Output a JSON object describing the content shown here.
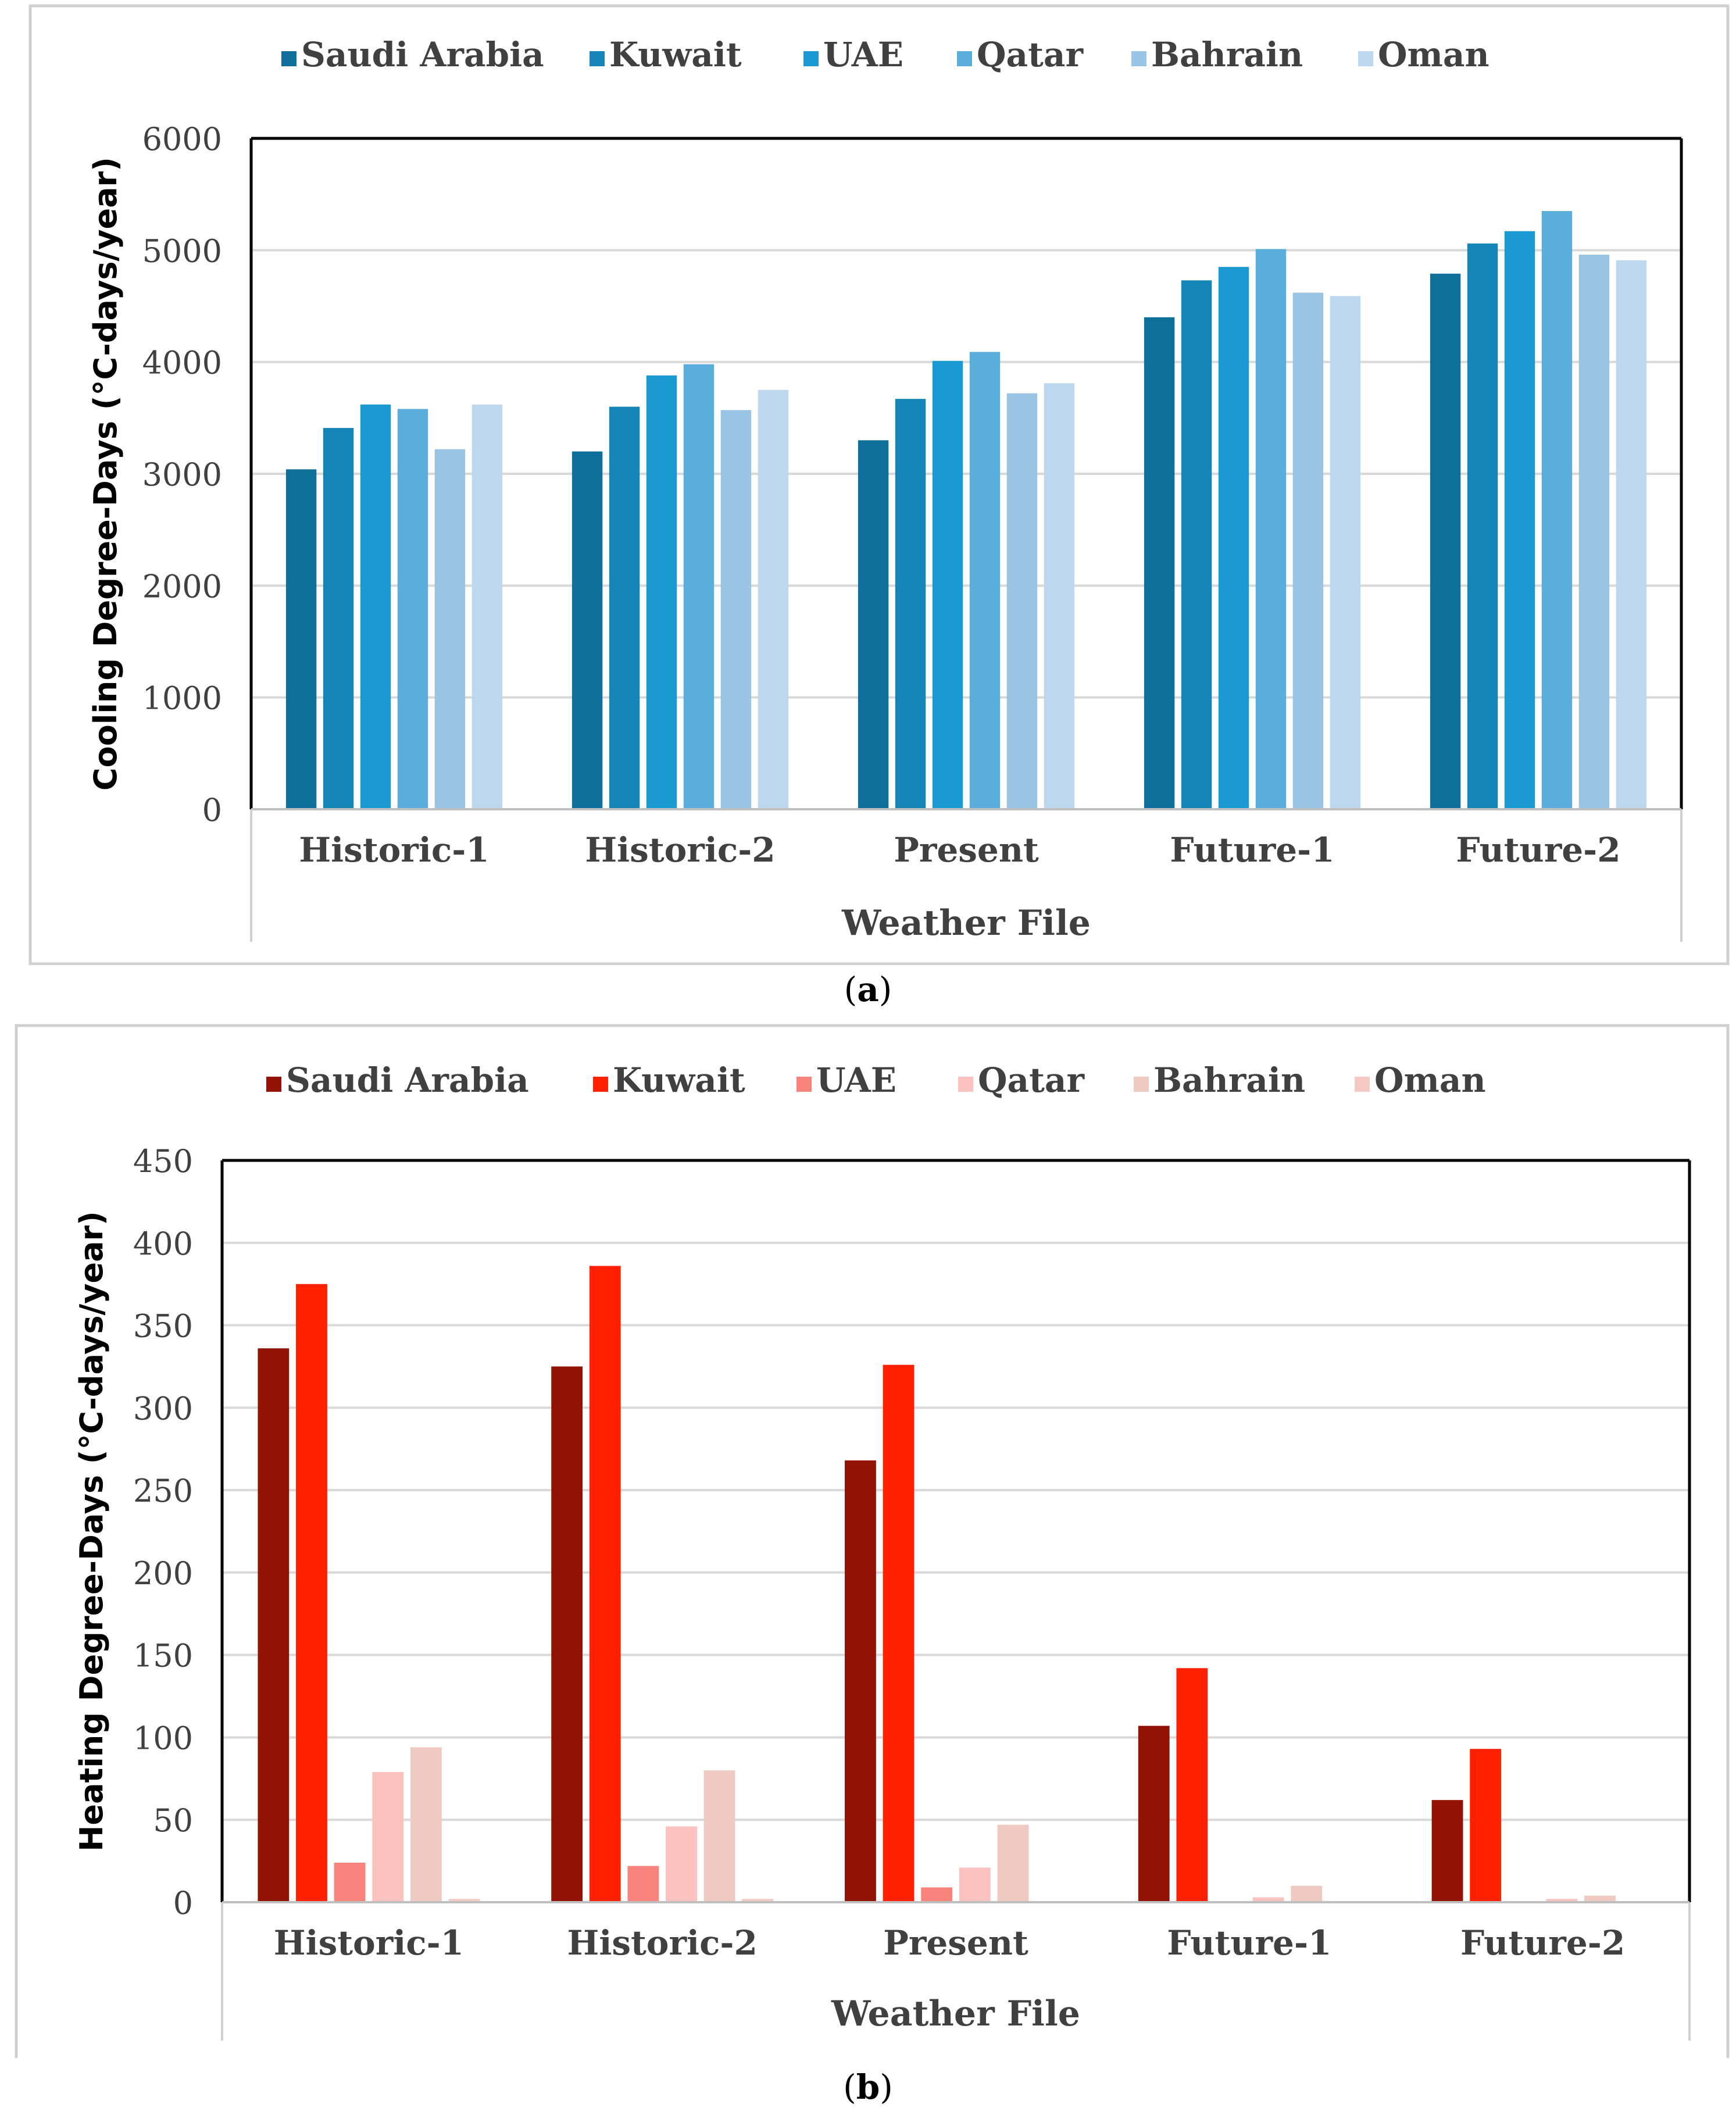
{
  "chart_data": [
    {
      "type": "bar",
      "title": "",
      "xlabel": "Weather File",
      "ylabel": "Cooling Degree-Days (°C-days/year)",
      "ylim": [
        0,
        6000
      ],
      "yticks": [
        0,
        1000,
        2000,
        3000,
        4000,
        5000,
        6000
      ],
      "grid": true,
      "legend_position": "top",
      "categories": [
        "Historic-1",
        "Historic-2",
        "Present",
        "Future-1",
        "Future-2"
      ],
      "series": [
        {
          "name": "Saudi Arabia",
          "color": "#0e6f9a",
          "values": [
            3040,
            3200,
            3300,
            4400,
            4790
          ]
        },
        {
          "name": "Kuwait",
          "color": "#1585b8",
          "values": [
            3410,
            3600,
            3670,
            4730,
            5060
          ]
        },
        {
          "name": "UAE",
          "color": "#1a9ad0",
          "values": [
            3620,
            3880,
            4010,
            4850,
            5170
          ]
        },
        {
          "name": "Qatar",
          "color": "#5aaedb",
          "values": [
            3580,
            3980,
            4090,
            5010,
            5350
          ]
        },
        {
          "name": "Bahrain",
          "color": "#9ac4e3",
          "values": [
            3220,
            3570,
            3720,
            4620,
            4960
          ]
        },
        {
          "name": "Oman",
          "color": "#bdd8ee",
          "values": [
            3620,
            3750,
            3810,
            4590,
            4910
          ]
        }
      ]
    },
    {
      "type": "bar",
      "title": "",
      "xlabel": "Weather File",
      "ylabel": "Heating Degree-Days (°C-days/year)",
      "ylim": [
        0,
        450
      ],
      "yticks": [
        0,
        50,
        100,
        150,
        200,
        250,
        300,
        350,
        400,
        450
      ],
      "grid": true,
      "legend_position": "top",
      "categories": [
        "Historic-1",
        "Historic-2",
        "Present",
        "Future-1",
        "Future-2"
      ],
      "series": [
        {
          "name": "Saudi Arabia",
          "color": "#931206",
          "values": [
            336,
            325,
            268,
            107,
            62
          ]
        },
        {
          "name": "Kuwait",
          "color": "#ff2000",
          "values": [
            375,
            386,
            326,
            142,
            93
          ]
        },
        {
          "name": "UAE",
          "color": "#f8837d",
          "values": [
            24,
            22,
            9,
            0,
            0
          ]
        },
        {
          "name": "Qatar",
          "color": "#fcc2c0",
          "values": [
            79,
            46,
            21,
            3,
            2
          ]
        },
        {
          "name": "Bahrain",
          "color": "#efcac3",
          "values": [
            94,
            80,
            47,
            10,
            4
          ]
        },
        {
          "name": "Oman",
          "color": "#f5c9c4",
          "values": [
            2,
            2,
            0,
            0,
            0
          ]
        }
      ]
    }
  ],
  "captions": [
    "a",
    "b"
  ]
}
